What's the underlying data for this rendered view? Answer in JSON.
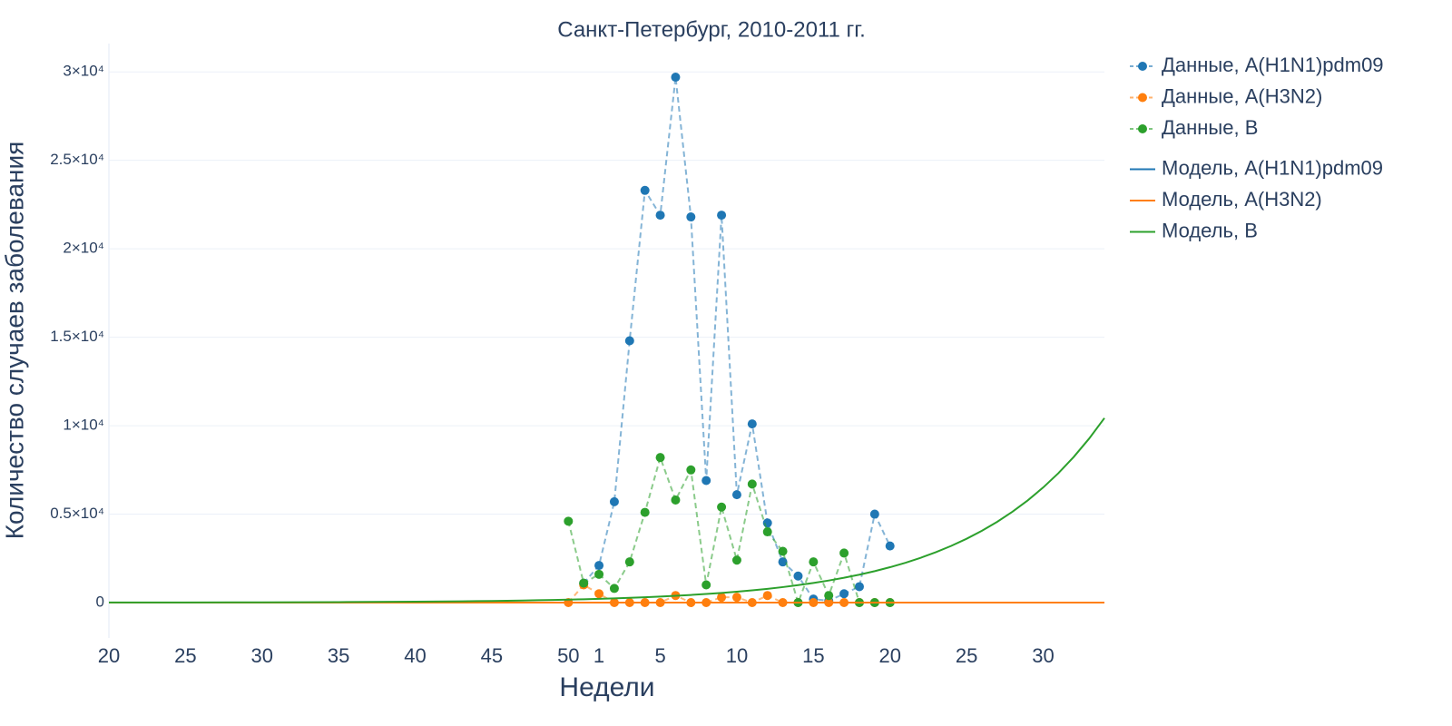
{
  "chart_data": {
    "type": "line",
    "title": "Санкт-Петербург, 2010-2011 гг.",
    "x_label": "Недели",
    "y_label": "Количество случаев заболевания",
    "xlim": [
      0,
      65
    ],
    "ylim": [
      -2000,
      31600
    ],
    "grid": true,
    "legend": "right",
    "xticks": [
      {
        "value": 0,
        "label": "20"
      },
      {
        "value": 5,
        "label": "25"
      },
      {
        "value": 10,
        "label": "30"
      },
      {
        "value": 15,
        "label": "35"
      },
      {
        "value": 20,
        "label": "40"
      },
      {
        "value": 25,
        "label": "45"
      },
      {
        "value": 30,
        "label": "50"
      },
      {
        "value": 32,
        "label": "1"
      },
      {
        "value": 36,
        "label": "5"
      },
      {
        "value": 41,
        "label": "10"
      },
      {
        "value": 46,
        "label": "15"
      },
      {
        "value": 51,
        "label": "20"
      },
      {
        "value": 56,
        "label": "25"
      },
      {
        "value": 61,
        "label": "30"
      }
    ],
    "yticks": [
      0,
      {
        "value": 5000,
        "label": "0.5×10⁴"
      },
      {
        "value": 10000,
        "label": "1×10⁴"
      },
      {
        "value": 15000,
        "label": "1.5×10⁴"
      },
      {
        "value": 20000,
        "label": "2×10⁴"
      },
      {
        "value": 25000,
        "label": "2.5×10⁴"
      },
      {
        "value": 30000,
        "label": "3×10⁴"
      }
    ],
    "series": [
      {
        "name": "Данные, A(H1N1)pdm09",
        "color": "#1f77b4",
        "dash": true,
        "markers": true,
        "x": [
          31,
          32,
          33,
          34,
          35,
          36,
          37,
          38,
          39,
          40,
          41,
          42,
          43,
          44,
          45,
          46,
          47,
          48,
          49,
          50,
          51
        ],
        "values": [
          1100,
          2100,
          5700,
          14800,
          23300,
          21900,
          29700,
          21800,
          6900,
          21900,
          6100,
          10100,
          4500,
          2300,
          1500,
          200,
          100,
          500,
          900,
          5000,
          3200
        ]
      },
      {
        "name": "Данные, A(H3N2)",
        "color": "#ff7f0e",
        "dash": true,
        "markers": true,
        "x": [
          30,
          31,
          32,
          33,
          34,
          35,
          36,
          37,
          38,
          39,
          40,
          41,
          42,
          43,
          44,
          45,
          46,
          47,
          48,
          49,
          50,
          51
        ],
        "values": [
          0,
          1000,
          500,
          0,
          0,
          0,
          0,
          400,
          0,
          0,
          300,
          300,
          0,
          400,
          0,
          0,
          0,
          0,
          0,
          0,
          0,
          0
        ]
      },
      {
        "name": "Данные, B",
        "color": "#2ca02c",
        "dash": true,
        "markers": true,
        "x": [
          30,
          31,
          32,
          33,
          34,
          35,
          36,
          37,
          38,
          39,
          40,
          41,
          42,
          43,
          44,
          45,
          46,
          47,
          48,
          49,
          50,
          51
        ],
        "values": [
          4600,
          1100,
          1600,
          800,
          2300,
          5100,
          8200,
          5800,
          7500,
          1000,
          5400,
          2400,
          6700,
          4000,
          2900,
          0,
          2300,
          400,
          2800,
          0,
          0,
          0
        ]
      },
      {
        "name": "Модель, A(H1N1)pdm09",
        "color": "#1f77b4",
        "dash": false,
        "markers": false,
        "x": [
          0,
          65
        ],
        "values": [
          0,
          0
        ]
      },
      {
        "name": "Модель, A(H3N2)",
        "color": "#ff7f0e",
        "dash": false,
        "markers": false,
        "x": [
          0,
          65
        ],
        "values": [
          0,
          0
        ]
      },
      {
        "name": "Модель, B",
        "color": "#2ca02c",
        "dash": false,
        "markers": false,
        "x": [
          0,
          5,
          10,
          15,
          20,
          21,
          22,
          23,
          24,
          25,
          26,
          27,
          28,
          29,
          30,
          31,
          32,
          33,
          34,
          35,
          36,
          37,
          38,
          39,
          40,
          41,
          42,
          43,
          44,
          45,
          46,
          47,
          48,
          49,
          50,
          51,
          52,
          53,
          54,
          55,
          56,
          57,
          58,
          59,
          60,
          61,
          62,
          63,
          64,
          65
        ],
        "values": [
          5,
          9,
          16,
          29,
          52,
          58,
          66,
          74,
          83,
          93,
          105,
          118,
          133,
          150,
          168,
          189,
          213,
          240,
          270,
          303,
          341,
          384,
          432,
          486,
          547,
          615,
          692,
          779,
          876,
          986,
          1109,
          1248,
          1404,
          1580,
          1777,
          2000,
          2250,
          2532,
          2849,
          3206,
          3607,
          4059,
          4567,
          5139,
          5782,
          6506,
          7321,
          8237,
          9269,
          10429
        ]
      }
    ]
  }
}
